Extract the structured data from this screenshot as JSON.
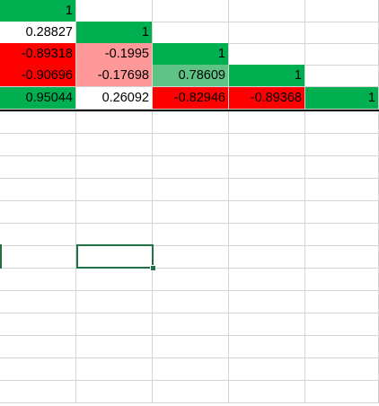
{
  "sheet": {
    "rows": [
      [
        {
          "text": "1",
          "fill": "#00b050"
        },
        {
          "text": "",
          "fill": ""
        },
        {
          "text": "",
          "fill": ""
        },
        {
          "text": "",
          "fill": ""
        },
        {
          "text": "",
          "fill": ""
        }
      ],
      [
        {
          "text": "0.28827",
          "fill": "#ffffff"
        },
        {
          "text": "1",
          "fill": "#00b050"
        },
        {
          "text": "",
          "fill": ""
        },
        {
          "text": "",
          "fill": ""
        },
        {
          "text": "",
          "fill": ""
        }
      ],
      [
        {
          "text": "-0.89318",
          "fill": "#ff0000"
        },
        {
          "text": "-0.1995",
          "fill": "#ff9999"
        },
        {
          "text": "1",
          "fill": "#00b050"
        },
        {
          "text": "",
          "fill": ""
        },
        {
          "text": "",
          "fill": ""
        }
      ],
      [
        {
          "text": "-0.90696",
          "fill": "#ff0000"
        },
        {
          "text": "-0.17698",
          "fill": "#ff9999"
        },
        {
          "text": "0.78609",
          "fill": "#60c386"
        },
        {
          "text": "1",
          "fill": "#00b050"
        },
        {
          "text": "",
          "fill": ""
        }
      ],
      [
        {
          "text": "0.95044",
          "fill": "#00b050"
        },
        {
          "text": "0.26092",
          "fill": "#ffffff"
        },
        {
          "text": "-0.82946",
          "fill": "#ff0000"
        },
        {
          "text": "-0.89368",
          "fill": "#ff0000"
        },
        {
          "text": "1",
          "fill": "#00b050"
        }
      ]
    ],
    "empty_rows": 13,
    "colors": {
      "gridline": "#d4d4d4",
      "selection": "#217346",
      "data_bottom_border": "#000000"
    }
  }
}
